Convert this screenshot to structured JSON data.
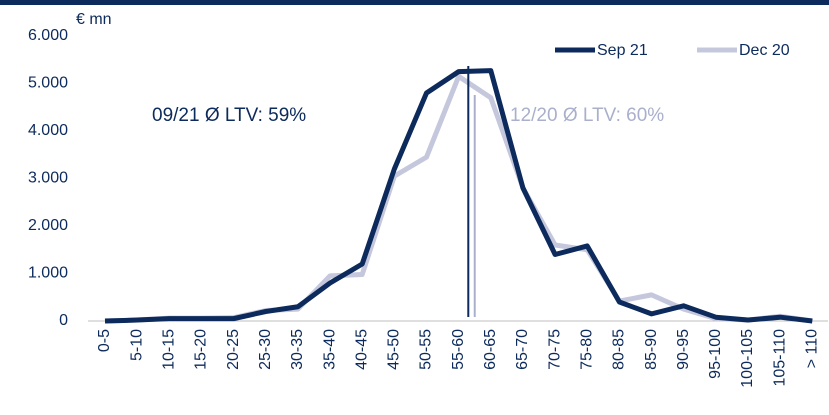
{
  "chart_data": {
    "type": "line",
    "y_unit_label": "€ mn",
    "categories": [
      "0-5",
      "5-10",
      "10-15",
      "15-20",
      "20-25",
      "25-30",
      "30-35",
      "35-40",
      "40-45",
      "45-50",
      "50-55",
      "55-60",
      "60-65",
      "65-70",
      "70-75",
      "75-80",
      "80-85",
      "85-90",
      "90-95",
      "95-100",
      "100-105",
      "105-110",
      "> 110"
    ],
    "series": [
      {
        "name": "Sep 21",
        "color": "#0c2a5b",
        "values": [
          0,
          20,
          50,
          50,
          50,
          200,
          300,
          800,
          1200,
          3200,
          4800,
          5250,
          5270,
          2800,
          1400,
          1580,
          400,
          150,
          320,
          80,
          20,
          80,
          0
        ]
      },
      {
        "name": "Dec 20",
        "color": "#c5c8dd",
        "values": [
          0,
          20,
          60,
          60,
          70,
          220,
          250,
          950,
          980,
          3050,
          3450,
          5150,
          4700,
          2800,
          1600,
          1500,
          420,
          550,
          250,
          50,
          20,
          100,
          0
        ]
      }
    ],
    "ltv_markers": [
      {
        "label": "09/21 Ø LTV: 59%",
        "value": 59,
        "color": "#0c2a5b"
      },
      {
        "label": "12/20 Ø LTV: 60%",
        "value": 60,
        "color": "#aab0cc"
      }
    ],
    "ylim": [
      0,
      6000
    ],
    "yticks": [
      0,
      {
        "value": 1000,
        "label": "1.000"
      },
      {
        "value": 2000,
        "label": "2.000"
      },
      {
        "value": 3000,
        "label": "3.000"
      },
      {
        "value": 4000,
        "label": "4.000"
      },
      {
        "value": 5000,
        "label": "5.000"
      },
      {
        "value": 6000,
        "label": "6.000"
      }
    ],
    "legend": "top-right"
  }
}
